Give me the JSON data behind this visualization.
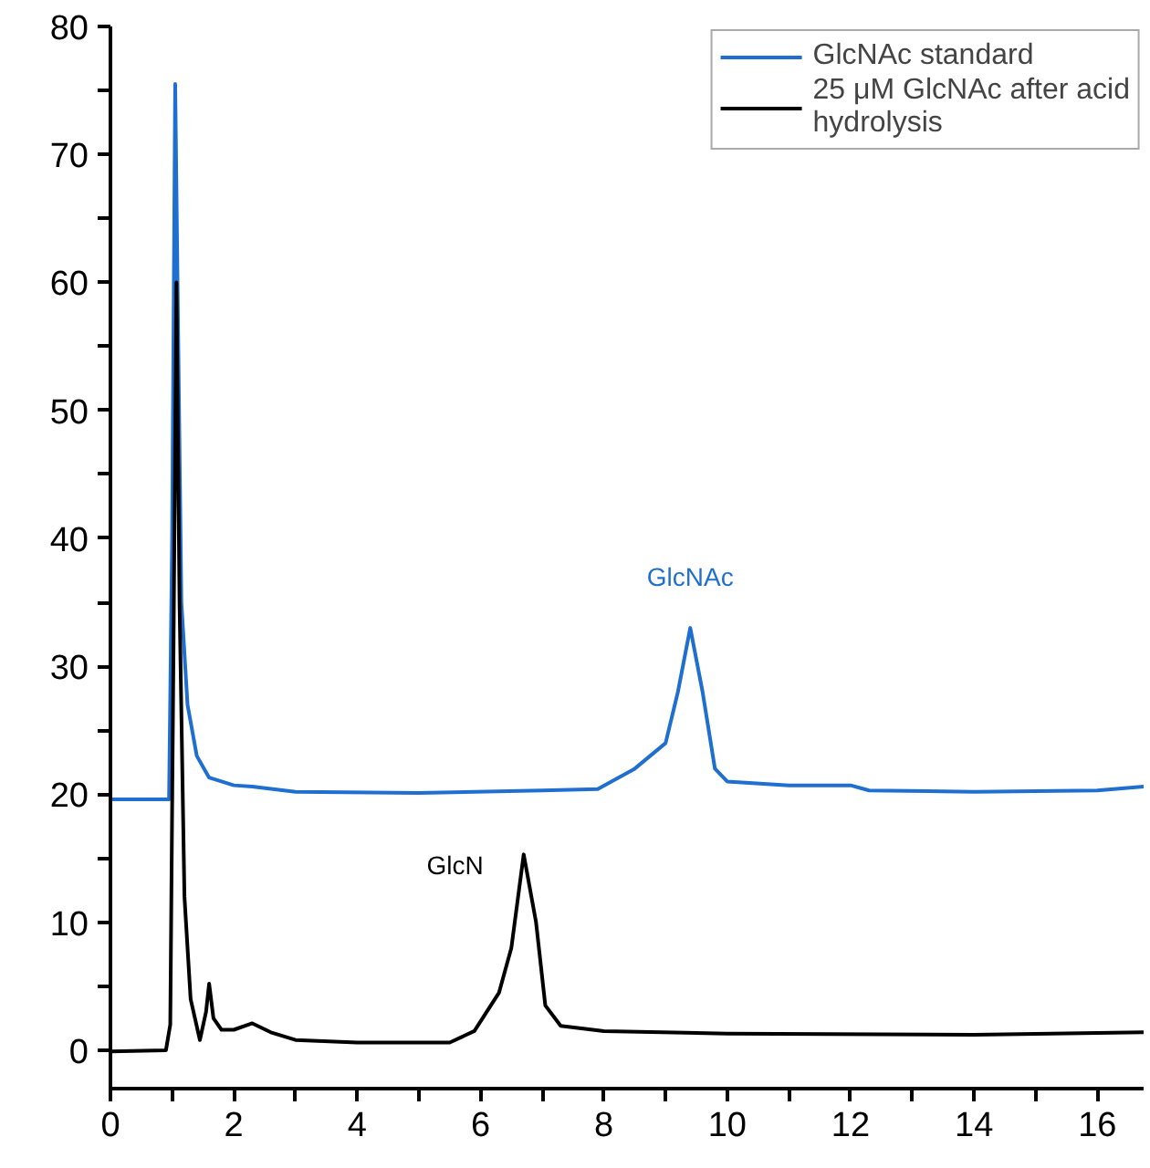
{
  "chart_data": {
    "type": "line",
    "legend": "top right",
    "grid": false,
    "line_style": "solid",
    "marker": "none",
    "xlim": [
      0,
      16.75
    ],
    "ylim": [
      -3,
      80
    ],
    "xticks": [
      0,
      {
        "value": 1,
        "label": null
      },
      2,
      {
        "value": 3,
        "label": null
      },
      4,
      {
        "value": 5,
        "label": null
      },
      6,
      {
        "value": 7,
        "label": null
      },
      8,
      {
        "value": 9,
        "label": null
      },
      10,
      {
        "value": 11,
        "label": null
      },
      12,
      {
        "value": 13,
        "label": null
      },
      14,
      {
        "value": 15,
        "label": null
      },
      16
    ],
    "yticks": [
      0,
      {
        "value": 5,
        "label": null
      },
      10,
      {
        "value": 15,
        "label": null
      },
      20,
      {
        "value": 25,
        "label": null
      },
      30,
      {
        "value": 35,
        "label": null
      },
      40,
      {
        "value": 45,
        "label": null
      },
      50,
      {
        "value": 55,
        "label": null
      },
      60,
      {
        "value": 65,
        "label": null
      },
      70,
      {
        "value": 75,
        "label": null
      },
      80
    ],
    "annotations": [
      {
        "text": "GlcNAc",
        "x": 9.4,
        "y": 33
      },
      {
        "text": "GlcN",
        "x": 6.7,
        "y": 15.3
      }
    ],
    "series": [
      {
        "name": "GlcNAc standard",
        "color": "#1f6fd0",
        "x": [
          0,
          0.95,
          1.0,
          1.05,
          1.1,
          1.15,
          1.25,
          1.4,
          1.6,
          2,
          2.3,
          3,
          5,
          7,
          7.9,
          8.5,
          9.0,
          9.2,
          9.4,
          9.6,
          9.8,
          10,
          11,
          12,
          12.3,
          14,
          16,
          16.75
        ],
        "values": [
          19.6,
          19.6,
          40,
          75.5,
          55,
          35,
          27,
          23,
          21.3,
          20.7,
          20.6,
          20.2,
          20.1,
          20.3,
          20.4,
          22,
          24,
          28,
          33,
          28,
          22,
          21,
          20.7,
          20.7,
          20.3,
          20.2,
          20.3,
          20.6
        ]
      },
      {
        "name": "25 μM GlcNAc after acid hydrolysis",
        "color": "#000000",
        "x": [
          0,
          0.9,
          0.97,
          1.02,
          1.07,
          1.12,
          1.2,
          1.3,
          1.45,
          1.55,
          1.6,
          1.67,
          1.8,
          2.0,
          2.3,
          2.6,
          3,
          4,
          5.5,
          5.9,
          6.3,
          6.5,
          6.7,
          6.9,
          7.05,
          7.3,
          8,
          10,
          14,
          16.75
        ],
        "values": [
          -0.1,
          0,
          2,
          30,
          60,
          35,
          12,
          4,
          0.8,
          3,
          5.2,
          2.5,
          1.6,
          1.6,
          2.1,
          1.4,
          0.8,
          0.6,
          0.6,
          1.5,
          4.5,
          8,
          15.3,
          10,
          3.5,
          1.9,
          1.5,
          1.3,
          1.2,
          1.4
        ]
      }
    ]
  }
}
